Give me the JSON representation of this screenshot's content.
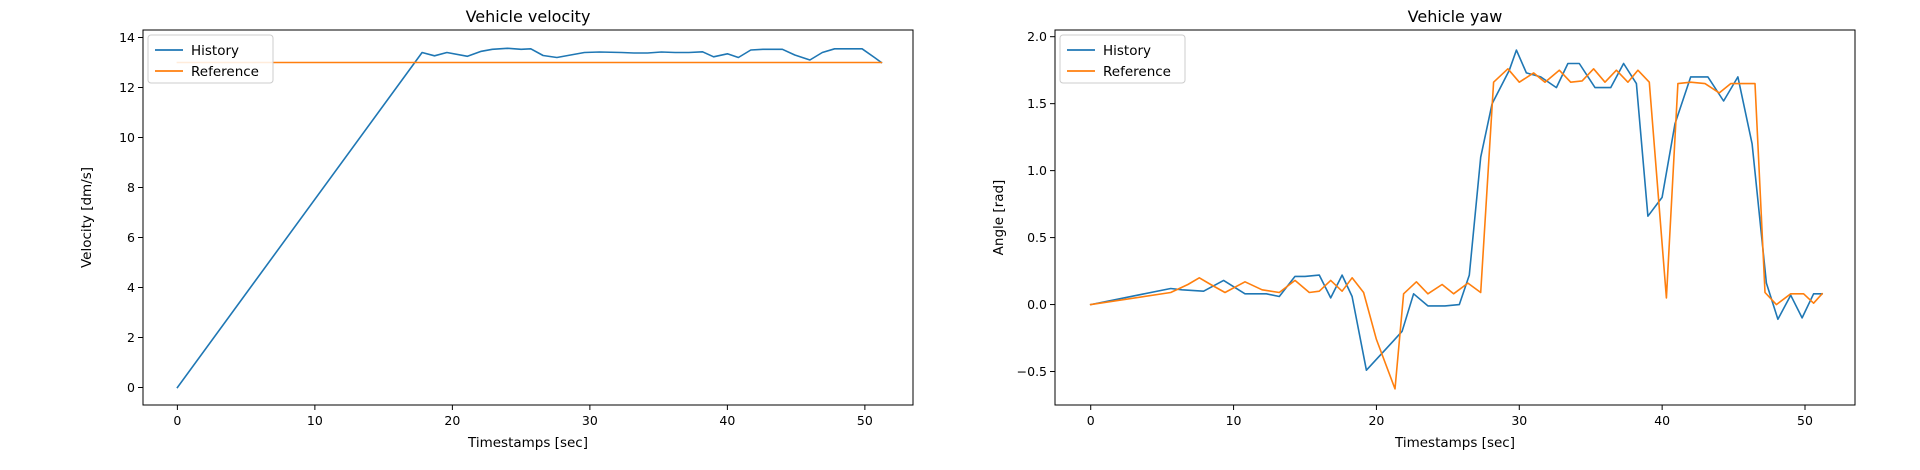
{
  "chart_data": [
    {
      "type": "line",
      "title": "Vehicle velocity",
      "xlabel": "Timestamps [sec]",
      "ylabel": "Velocity [dm/s]",
      "xlim": [
        -2.5,
        53.5
      ],
      "ylim": [
        -0.7,
        14.3
      ],
      "xticks": [
        0,
        10,
        20,
        30,
        40,
        50
      ],
      "yticks": [
        0,
        2,
        4,
        6,
        8,
        10,
        12,
        14
      ],
      "legend_position": "top-left",
      "grid": false,
      "series": [
        {
          "name": "History",
          "color": "#1f77b4",
          "x": [
            0,
            17.8,
            18.7,
            19.6,
            21.1,
            22.1,
            22.9,
            24.0,
            25.0,
            25.7,
            26.6,
            27.6,
            28.6,
            29.6,
            30.7,
            32.3,
            33.2,
            34.2,
            35.2,
            36.2,
            37.2,
            38.2,
            39.0,
            40.0,
            40.8,
            41.7,
            42.6,
            44.0,
            44.9,
            46.0,
            46.9,
            47.8,
            48.8,
            49.8,
            50.7,
            51.2
          ],
          "y": [
            0,
            13.4,
            13.27,
            13.4,
            13.25,
            13.45,
            13.53,
            13.57,
            13.53,
            13.55,
            13.28,
            13.2,
            13.3,
            13.4,
            13.42,
            13.4,
            13.38,
            13.38,
            13.42,
            13.4,
            13.4,
            13.43,
            13.23,
            13.35,
            13.2,
            13.5,
            13.53,
            13.53,
            13.3,
            13.1,
            13.4,
            13.55,
            13.55,
            13.55,
            13.2,
            13.0
          ]
        },
        {
          "name": "Reference",
          "color": "#ff7f0e",
          "x": [
            0,
            51.2
          ],
          "y": [
            13.0,
            13.0
          ]
        }
      ]
    },
    {
      "type": "line",
      "title": "Vehicle yaw",
      "xlabel": "Timestamps [sec]",
      "ylabel": "Angle [rad]",
      "xlim": [
        -2.5,
        53.5
      ],
      "ylim": [
        -0.75,
        2.05
      ],
      "xticks": [
        0,
        10,
        20,
        30,
        40,
        50
      ],
      "yticks": [
        -0.5,
        0.0,
        0.5,
        1.0,
        1.5,
        2.0
      ],
      "ytick_labels": [
        "−0.5",
        "0.0",
        "0.5",
        "1.0",
        "1.5",
        "2.0"
      ],
      "legend_position": "top-left",
      "grid": false,
      "series": [
        {
          "name": "History",
          "color": "#1f77b4",
          "x": [
            0,
            5.6,
            6.4,
            7.9,
            9.3,
            10.8,
            12.3,
            13.2,
            14.3,
            15.0,
            16.0,
            16.8,
            17.6,
            18.3,
            19.3,
            21.2,
            21.8,
            22.6,
            23.6,
            24.8,
            25.8,
            26.5,
            27.3,
            28.1,
            29.3,
            29.8,
            30.5,
            31.5,
            32.6,
            33.4,
            34.2,
            35.3,
            36.4,
            37.3,
            38.2,
            39.0,
            40.0,
            40.9,
            42.0,
            43.2,
            44.3,
            45.3,
            46.3,
            47.3,
            48.1,
            49.0,
            49.8,
            50.6,
            51.2
          ],
          "y": [
            0.0,
            0.12,
            0.11,
            0.1,
            0.18,
            0.08,
            0.08,
            0.06,
            0.21,
            0.21,
            0.22,
            0.05,
            0.22,
            0.06,
            -0.49,
            -0.27,
            -0.2,
            0.08,
            -0.01,
            -0.01,
            0.0,
            0.22,
            1.1,
            1.5,
            1.75,
            1.9,
            1.73,
            1.7,
            1.62,
            1.8,
            1.8,
            1.62,
            1.62,
            1.8,
            1.65,
            0.66,
            0.8,
            1.35,
            1.7,
            1.7,
            1.52,
            1.7,
            1.2,
            0.16,
            -0.11,
            0.07,
            -0.1,
            0.08,
            0.08
          ]
        },
        {
          "name": "Reference",
          "color": "#ff7f0e",
          "x": [
            0,
            5.6,
            6.8,
            7.6,
            8.4,
            9.4,
            10.8,
            12.0,
            13.2,
            14.3,
            15.3,
            16.0,
            16.8,
            17.6,
            18.3,
            19.1,
            20.0,
            21.3,
            21.9,
            22.8,
            23.6,
            24.6,
            25.4,
            26.4,
            27.3,
            28.2,
            29.2,
            30.0,
            31.0,
            31.8,
            32.8,
            33.6,
            34.4,
            35.2,
            36.0,
            36.8,
            37.6,
            38.3,
            39.1,
            40.3,
            41.1,
            42.0,
            43.0,
            44.0,
            44.8,
            45.8,
            46.5,
            47.2,
            48.0,
            49.0,
            49.9,
            50.6,
            51.2
          ],
          "y": [
            0.0,
            0.09,
            0.15,
            0.2,
            0.15,
            0.09,
            0.17,
            0.11,
            0.09,
            0.18,
            0.09,
            0.1,
            0.18,
            0.1,
            0.2,
            0.09,
            -0.26,
            -0.63,
            0.08,
            0.17,
            0.08,
            0.15,
            0.08,
            0.16,
            0.09,
            1.66,
            1.76,
            1.66,
            1.73,
            1.66,
            1.75,
            1.66,
            1.67,
            1.76,
            1.66,
            1.75,
            1.66,
            1.75,
            1.66,
            0.05,
            1.65,
            1.66,
            1.65,
            1.58,
            1.65,
            1.65,
            1.65,
            0.09,
            0.0,
            0.08,
            0.08,
            0.01,
            0.08
          ]
        }
      ]
    }
  ]
}
